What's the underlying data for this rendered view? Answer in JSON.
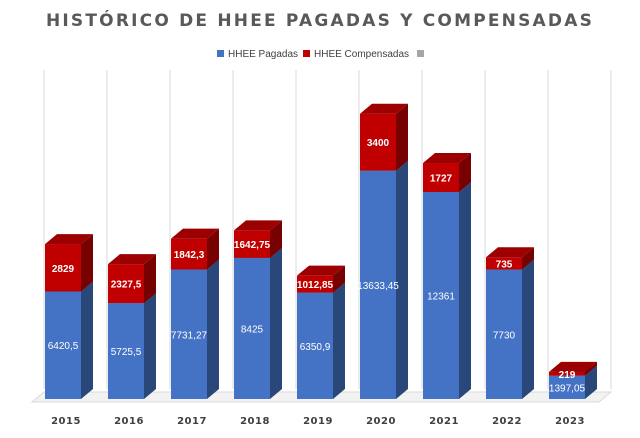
{
  "chart_data": {
    "type": "bar",
    "stacked": true,
    "three_d": true,
    "title": "HISTÓRICO DE HHEE PAGADAS Y COMPENSADAS",
    "categories": [
      "2015",
      "2016",
      "2017",
      "2018",
      "2019",
      "2020",
      "2021",
      "2022",
      "2023"
    ],
    "series": [
      {
        "name": "HHEE Pagadas",
        "color": "#4472c4",
        "values": [
          6420.5,
          5725.5,
          7731.27,
          8425,
          6350.9,
          13633.45,
          12361,
          7730,
          1397.05
        ],
        "labels": [
          "6420,5",
          "5725,5",
          "7731,27",
          "8425",
          "6350,9",
          "13633,45",
          "12361",
          "7730",
          "1397,05"
        ]
      },
      {
        "name": "HHEE Compensadas",
        "color": "#c00000",
        "values": [
          2829,
          2327.5,
          1842.3,
          1642.75,
          1012.85,
          3400,
          1727,
          735,
          219
        ],
        "labels": [
          "2829",
          "2327,5",
          "1842,3",
          "1642,75",
          "1012,85",
          "3400",
          "1727",
          "735",
          "219"
        ]
      }
    ],
    "legend": {
      "placement": "top-center",
      "extra_marker_color": "#a6a6a6"
    },
    "grid": {
      "vertical": true
    },
    "ylim": [
      0,
      18000
    ]
  }
}
